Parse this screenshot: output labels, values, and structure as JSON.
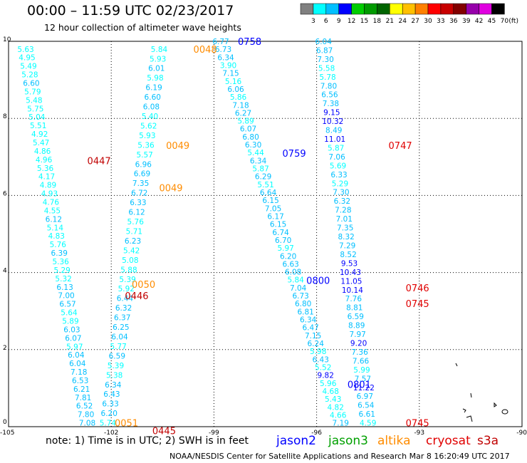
{
  "title": "00:00 – 11:59 UTC 02/23/2017",
  "subtitle": "12 hour collection of altimeter wave heights",
  "note": "note: 1) Time is in UTC; 2) SWH is in feet",
  "footer": "NOAA/NESDIS Center for Satellite Applications and Research   Mar  8 16:20:49 UTC 2017",
  "missions": [
    {
      "name": "jason2",
      "color": "#0000ff"
    },
    {
      "name": "jason3",
      "color": "#00a000"
    },
    {
      "name": "altika",
      "color": "#ff8c00"
    },
    {
      "name": "cryosat",
      "color": "#e00000"
    },
    {
      "name": "s3a",
      "color": "#c00000"
    }
  ],
  "chart_data": {
    "type": "scatter",
    "title": "00:00 – 11:59 UTC 02/23/2017",
    "subtitle": "12 hour collection of altimeter wave heights",
    "xlim": [
      -105,
      -90
    ],
    "ylim": [
      0,
      10
    ],
    "x_ticks": [
      "-105",
      "-102",
      "-99",
      "-96",
      "-93",
      "-90"
    ],
    "y_ticks": [
      "0",
      "2",
      "4",
      "6",
      "8",
      "10"
    ],
    "grid": true,
    "colorbar": {
      "unit": "(ft)",
      "labels": [
        "3",
        "6",
        "9",
        "12",
        "15",
        "18",
        "21",
        "24",
        "27",
        "30",
        "33",
        "36",
        "39",
        "42",
        "45",
        "70"
      ],
      "colors": [
        "#808080",
        "#00ffff",
        "#00bfff",
        "#0000ff",
        "#00cd00",
        "#009a00",
        "#006400",
        "#ffff00",
        "#ffc000",
        "#ff8000",
        "#ff0000",
        "#c80000",
        "#820000",
        "#9600aa",
        "#e000e0",
        "#000000"
      ]
    },
    "tracks": [
      {
        "lon_start": -104.5,
        "lat_start": 9.8,
        "lon_end": -102.7,
        "lat_end": 0.1,
        "values": [
          "5.63",
          "4.95",
          "5.49",
          "5.28",
          "6.60",
          "5.79",
          "5.48",
          "5.75",
          "5.04",
          "5.51",
          "4.92",
          "5.47",
          "4.86",
          "4.96",
          "5.36",
          "4.17",
          "4.89",
          "4.93",
          "4.76",
          "4.55",
          "6.12",
          "5.14",
          "4.83",
          "5.76",
          "6.39",
          "5.36",
          "5.29",
          "5.32",
          "6.13",
          "7.00",
          "6.57",
          "5.64",
          "5.89",
          "6.03",
          "6.07",
          "5.97",
          "6.04",
          "6.04",
          "7.18",
          "6.53",
          "6.21",
          "7.81",
          "6.52",
          "7.80",
          "7.08"
        ]
      },
      {
        "lon_start": -100.6,
        "lat_start": 9.8,
        "lon_end": -102.1,
        "lat_end": 0.1,
        "values": [
          "5.84",
          "5.93",
          "6.01",
          "5.98",
          "6.19",
          "6.60",
          "6.08",
          "5.40",
          "5.62",
          "5.93",
          "5.36",
          "5.57",
          "6.96",
          "6.69",
          "7.35",
          "6.72",
          "6.33",
          "6.12",
          "5.76",
          "5.71",
          "6.23",
          "5.42",
          "5.08",
          "5.88",
          "5.39",
          "5.92",
          "6.44",
          "6.32",
          "6.37",
          "6.25",
          "6.04",
          "5.77",
          "6.59",
          "5.39",
          "5.38",
          "6.34",
          "6.43",
          "6.33",
          "6.20",
          "5.74"
        ]
      },
      {
        "lon_start": -98.8,
        "lat_start": 10.0,
        "lon_end": -95.3,
        "lat_end": 0.1,
        "values": [
          "6.77",
          "6.73",
          "6.34",
          "3.90",
          "7.15",
          "5.16",
          "6.06",
          "5.86",
          "7.18",
          "6.27",
          "5.89",
          "6.07",
          "6.80",
          "6.30",
          "5.44",
          "6.34",
          "5.87",
          "6.29",
          "5.51",
          "6.64",
          "6.15",
          "7.05",
          "6.17",
          "6.15",
          "6.74",
          "6.70",
          "5.97",
          "6.20",
          "6.63",
          "6.08",
          "5.84",
          "7.04",
          "6.73",
          "6.80",
          "6.81",
          "6.34",
          "6.47",
          "7.15",
          "6.24",
          "5.98",
          "6.43",
          "5.52",
          "9.82",
          "5.96",
          "4.68",
          "5.43",
          "4.82",
          "4.66",
          "7.19"
        ]
      },
      {
        "lon_start": -95.8,
        "lat_start": 10.0,
        "lon_end": -94.5,
        "lat_end": 0.1,
        "values": [
          "6.04",
          "6.87",
          "7.30",
          "5.58",
          "5.78",
          "7.80",
          "6.56",
          "7.38",
          "9.15",
          "10.32",
          "8.49",
          "11.01",
          "5.87",
          "7.06",
          "5.69",
          "6.33",
          "5.29",
          "7.30",
          "6.32",
          "7.28",
          "7.01",
          "7.35",
          "8.32",
          "7.29",
          "8.52",
          "9.53",
          "10.43",
          "11.05",
          "10.14",
          "7.76",
          "8.81",
          "6.59",
          "8.89",
          "7.97",
          "9.20",
          "7.36",
          "7.66",
          "5.99",
          "7.57",
          "11.22",
          "6.97",
          "6.54",
          "6.61",
          "4.59"
        ]
      }
    ],
    "pass_times": [
      {
        "label": "0758",
        "mission": "jason2",
        "lon": -98.3,
        "lat": 10.0
      },
      {
        "label": "0048",
        "mission": "altika",
        "lon": -99.6,
        "lat": 9.8
      },
      {
        "label": "0049",
        "mission": "altika",
        "lon": -100.4,
        "lat": 7.3
      },
      {
        "label": "0447",
        "mission": "s3a",
        "lon": -102.7,
        "lat": 6.9
      },
      {
        "label": "0049",
        "mission": "altika",
        "lon": -100.6,
        "lat": 6.2
      },
      {
        "label": "0759",
        "mission": "jason2",
        "lon": -97.0,
        "lat": 7.1
      },
      {
        "label": "0747",
        "mission": "cryosat",
        "lon": -93.9,
        "lat": 7.3
      },
      {
        "label": "0050",
        "mission": "altika",
        "lon": -101.4,
        "lat": 3.7
      },
      {
        "label": "0446",
        "mission": "s3a",
        "lon": -101.6,
        "lat": 3.4
      },
      {
        "label": "0800",
        "mission": "jason2",
        "lon": -96.3,
        "lat": 3.8
      },
      {
        "label": "0746",
        "mission": "cryosat",
        "lon": -93.4,
        "lat": 3.6
      },
      {
        "label": "0745",
        "mission": "cryosat",
        "lon": -93.4,
        "lat": 3.2
      },
      {
        "label": "0801",
        "mission": "jason2",
        "lon": -95.1,
        "lat": 1.1
      },
      {
        "label": "0051",
        "mission": "altika",
        "lon": -101.9,
        "lat": 0.1
      },
      {
        "label": "0445",
        "mission": "s3a",
        "lon": -100.8,
        "lat": -0.1
      },
      {
        "label": "0745",
        "mission": "cryosat",
        "lon": -93.4,
        "lat": 0.1
      }
    ]
  }
}
